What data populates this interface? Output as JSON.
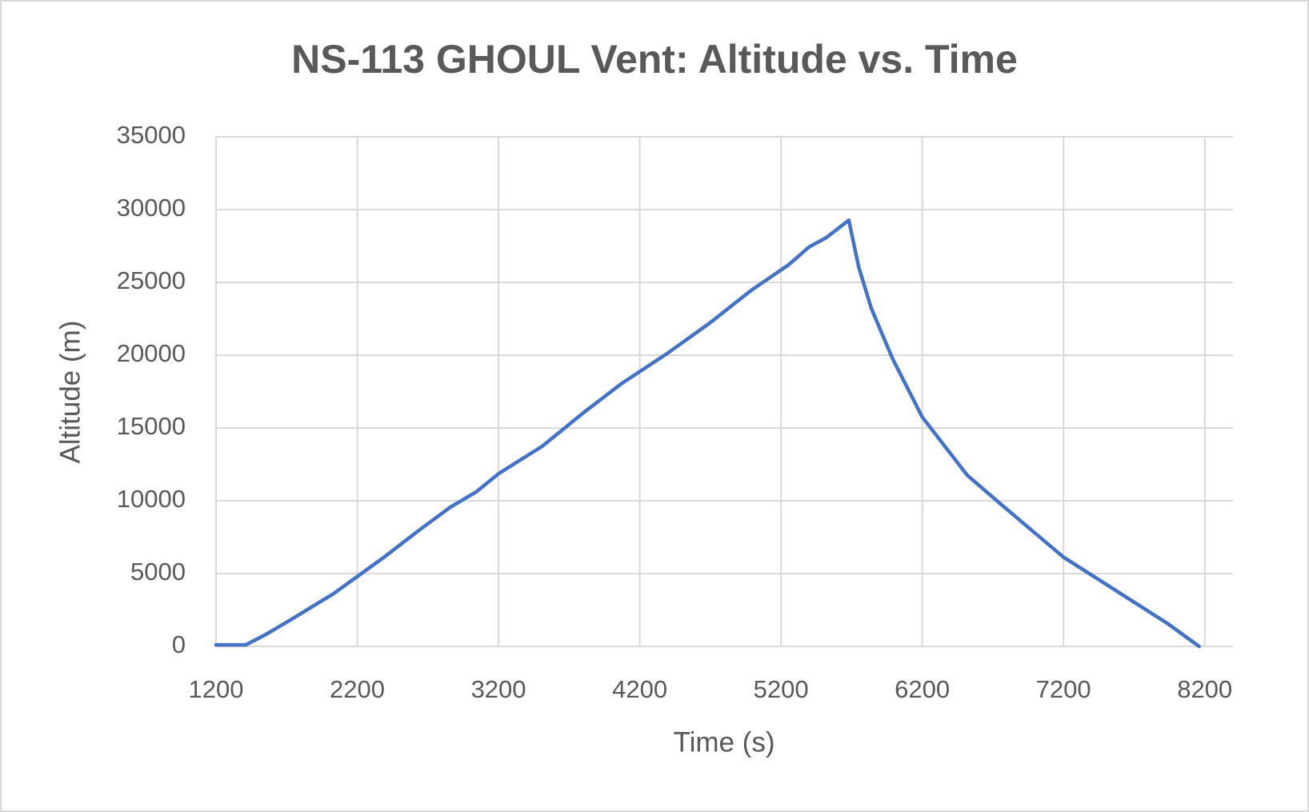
{
  "chart_data": {
    "type": "line",
    "title": "NS-113 GHOUL Vent: Altitude vs. Time",
    "x_label": "Time (s)",
    "y_label": "Altitude (m)",
    "x": [
      1200,
      1410,
      1560,
      1710,
      2030,
      2210,
      2390,
      2620,
      2860,
      3040,
      3200,
      3510,
      3800,
      4070,
      4400,
      4690,
      4990,
      5250,
      5400,
      5520,
      5680,
      5750,
      5840,
      5990,
      6200,
      6520,
      6760,
      7200,
      7590,
      7940,
      8160
    ],
    "series": [
      {
        "name": "Altitude",
        "color": "#4472c4",
        "values": [
          100,
          100,
          860,
          1720,
          3610,
          4870,
          6130,
          7850,
          9570,
          10600,
          11860,
          13750,
          16040,
          18040,
          20160,
          22170,
          24460,
          26180,
          27440,
          28070,
          29270,
          26060,
          23200,
          19760,
          15750,
          11740,
          9740,
          6130,
          3720,
          1550,
          0
        ]
      }
    ],
    "xlim": [
      1200,
      8400
    ],
    "xticks": [
      1200,
      2200,
      3200,
      4200,
      5200,
      6200,
      7200,
      8200
    ],
    "ylim": [
      0,
      35000
    ],
    "yticks": [
      0,
      5000,
      10000,
      15000,
      20000,
      25000,
      30000,
      35000
    ],
    "grid": true
  }
}
